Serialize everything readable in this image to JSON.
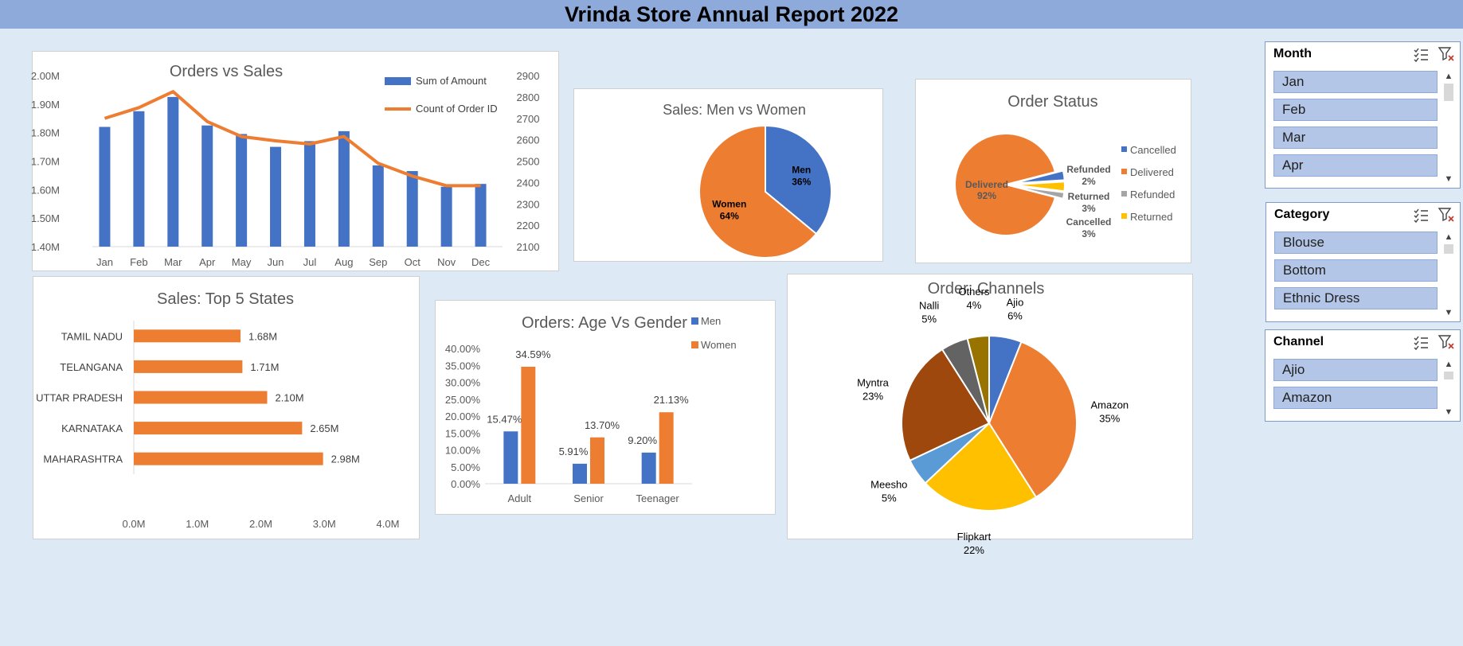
{
  "header": {
    "title": "Vrinda Store Annual Report 2022"
  },
  "chart_data": [
    {
      "id": "orders_vs_sales",
      "type": "bar-line-combo",
      "title": "Orders vs Sales",
      "categories": [
        "Jan",
        "Feb",
        "Mar",
        "Apr",
        "May",
        "Jun",
        "Jul",
        "Aug",
        "Sep",
        "Oct",
        "Nov",
        "Dec"
      ],
      "series": [
        {
          "name": "Sum of Amount",
          "type": "bar",
          "axis": "left",
          "color": "#4472c4",
          "values": [
            1.82,
            1.875,
            1.925,
            1.825,
            1.795,
            1.75,
            1.77,
            1.805,
            1.685,
            1.665,
            1.61,
            1.62
          ]
        },
        {
          "name": "Count of Order ID",
          "type": "line",
          "axis": "right",
          "color": "#ed7d31",
          "values": [
            2700,
            2750,
            2825,
            2685,
            2615,
            2595,
            2580,
            2615,
            2490,
            2430,
            2385,
            2385
          ]
        }
      ],
      "left_axis": {
        "min": 1.4,
        "max": 2.0,
        "step": 0.1,
        "ticks": [
          "1.40M",
          "1.50M",
          "1.60M",
          "1.70M",
          "1.80M",
          "1.90M",
          "2.00M"
        ]
      },
      "right_axis": {
        "min": 2100,
        "max": 2900,
        "step": 100,
        "ticks": [
          "2100",
          "2200",
          "2300",
          "2400",
          "2500",
          "2600",
          "2700",
          "2800",
          "2900"
        ]
      },
      "legend": "top-right"
    },
    {
      "id": "men_vs_women",
      "type": "pie",
      "title": "Sales: Men vs Women",
      "slices": [
        {
          "name": "Men",
          "value": 36,
          "label": "36%",
          "color": "#4472c4"
        },
        {
          "name": "Women",
          "value": 64,
          "label": "64%",
          "color": "#ed7d31"
        }
      ]
    },
    {
      "id": "order_status",
      "type": "pie",
      "title": "Order Status",
      "slices": [
        {
          "name": "Delivered",
          "value": 92,
          "label": "92%",
          "color": "#ed7d31"
        },
        {
          "name": "Cancelled",
          "value": 3,
          "label": "3%",
          "color": "#4472c4"
        },
        {
          "name": "Returned",
          "value": 3,
          "label": "3%",
          "color": "#ffc000"
        },
        {
          "name": "Refunded",
          "value": 2,
          "label": "2%",
          "color": "#a5a5a5"
        }
      ],
      "legend_entries": [
        {
          "name": "Cancelled",
          "color": "#4472c4"
        },
        {
          "name": "Delivered",
          "color": "#ed7d31"
        },
        {
          "name": "Refunded",
          "color": "#a5a5a5"
        },
        {
          "name": "Returned",
          "color": "#ffc000"
        }
      ],
      "legend": "right"
    },
    {
      "id": "top_states",
      "type": "bar-horizontal",
      "title": "Sales: Top 5 States",
      "categories": [
        "TAMIL NADU",
        "TELANGANA",
        "UTTAR PRADESH",
        "KARNATAKA",
        "MAHARASHTRA"
      ],
      "values": [
        1.68,
        1.71,
        2.1,
        2.65,
        2.98
      ],
      "labels": [
        "1.68M",
        "1.71M",
        "2.10M",
        "2.65M",
        "2.98M"
      ],
      "color": "#ed7d31",
      "xlim": [
        0,
        4
      ],
      "ticks": [
        "0.0M",
        "1.0M",
        "2.0M",
        "3.0M",
        "4.0M"
      ]
    },
    {
      "id": "age_vs_gender",
      "type": "bar",
      "title": "Orders: Age Vs Gender",
      "categories": [
        "Adult",
        "Senior",
        "Teenager"
      ],
      "series": [
        {
          "name": "Men",
          "color": "#4472c4",
          "values": [
            15.47,
            5.91,
            9.2
          ],
          "labels": [
            "15.47%",
            "5.91%",
            "9.20%"
          ]
        },
        {
          "name": "Women",
          "color": "#ed7d31",
          "values": [
            34.59,
            13.7,
            21.13
          ],
          "labels": [
            "34.59%",
            "13.70%",
            "21.13%"
          ]
        }
      ],
      "ylim": [
        0,
        40
      ],
      "ticks": [
        "0.00%",
        "5.00%",
        "10.00%",
        "15.00%",
        "20.00%",
        "25.00%",
        "30.00%",
        "35.00%",
        "40.00%"
      ],
      "legend": "top-right"
    },
    {
      "id": "channels",
      "type": "pie",
      "title": "Order: Channels",
      "slices": [
        {
          "name": "Ajio",
          "value": 6,
          "label": "6%",
          "color": "#4472c4"
        },
        {
          "name": "Amazon",
          "value": 35,
          "label": "35%",
          "color": "#ed7d31"
        },
        {
          "name": "Flipkart",
          "value": 22,
          "label": "22%",
          "color": "#ffc000"
        },
        {
          "name": "Meesho",
          "value": 5,
          "label": "5%",
          "color": "#5b9bd5"
        },
        {
          "name": "Myntra",
          "value": 23,
          "label": "23%",
          "color": "#9e480e"
        },
        {
          "name": "Nalli",
          "value": 5,
          "label": "5%",
          "color": "#636363"
        },
        {
          "name": "Others",
          "value": 4,
          "label": "4%",
          "color": "#997300"
        }
      ]
    }
  ],
  "slicers": [
    {
      "title": "Month",
      "items": [
        "Jan",
        "Feb",
        "Mar",
        "Apr"
      ]
    },
    {
      "title": "Category",
      "items": [
        "Blouse",
        "Bottom",
        "Ethnic Dress"
      ]
    },
    {
      "title": "Channel",
      "items": [
        "Ajio",
        "Amazon"
      ]
    }
  ],
  "icons": {
    "multi_select": "multi-select-icon",
    "clear_filter": "clear-filter-icon",
    "scroll_up": "chevron-up-icon",
    "scroll_down": "chevron-down-icon"
  }
}
